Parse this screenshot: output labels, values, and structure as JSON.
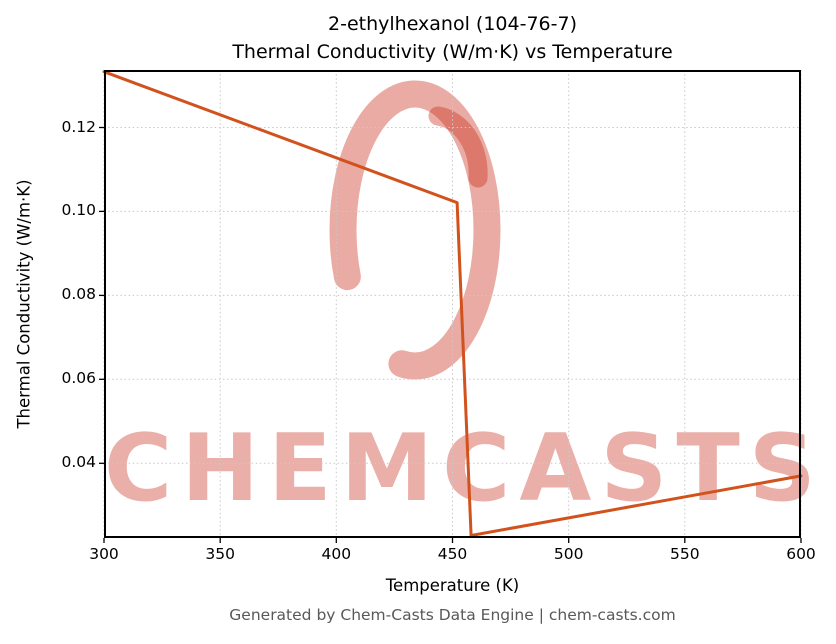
{
  "chart_data": {
    "type": "line",
    "title": "2-ethylhexanol (104-76-7)",
    "subtitle": "Thermal Conductivity (W/m·K) vs Temperature",
    "xlabel": "Temperature (K)",
    "ylabel": "Thermal Conductivity (W/m·K)",
    "xlim": [
      300,
      600
    ],
    "ylim": [
      0.0222,
      0.1337
    ],
    "xticks": [
      300,
      350,
      400,
      450,
      500,
      550,
      600
    ],
    "yticks": [
      0.04,
      0.06,
      0.08,
      0.1,
      0.12
    ],
    "grid": true,
    "legend": "none",
    "line_color": "#d2521e",
    "series": [
      {
        "name": "thermal conductivity",
        "points": [
          [
            300,
            0.1333
          ],
          [
            452,
            0.1021
          ],
          [
            458,
            0.0228
          ],
          [
            600,
            0.037
          ]
        ]
      }
    ]
  },
  "watermark": {
    "text": "CHEMCASTS",
    "color": "#c82d19"
  },
  "footer": {
    "text": "Generated by Chem-Casts Data Engine | chem-casts.com"
  }
}
